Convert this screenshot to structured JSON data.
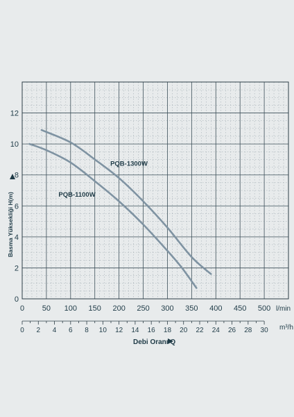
{
  "chart_data": {
    "type": "line",
    "ylabel": "Basma Yüksekliği H(m)",
    "xlabel": "Debi Oranı Q",
    "x_unit": "l/min",
    "x2_unit": "m³/h",
    "xlim": [
      0,
      550
    ],
    "ylim": [
      0,
      14
    ],
    "grid": true,
    "x_ticks": [
      0,
      50,
      100,
      150,
      200,
      250,
      300,
      350,
      400,
      450,
      500
    ],
    "x_tick_labels": [
      "0",
      "50",
      "100",
      "150",
      "200",
      "250",
      "300",
      "350",
      "400",
      "450",
      "500"
    ],
    "y_ticks": [
      0,
      2,
      4,
      6,
      8,
      10,
      12
    ],
    "y_tick_labels": [
      "0",
      "2",
      "4",
      "6",
      "8",
      "10",
      "12"
    ],
    "x2_ticks": [
      0,
      2,
      4,
      6,
      8,
      10,
      12,
      14,
      16,
      18,
      20,
      22,
      24,
      26,
      28,
      30
    ],
    "x2_tick_labels": [
      "0",
      "2",
      "4",
      "6",
      "8",
      "10",
      "12",
      "14",
      "16",
      "18",
      "20",
      "22",
      "24",
      "26",
      "28",
      "30"
    ],
    "series": [
      {
        "name": "PQB-1300W",
        "x": [
          40,
          100,
          150,
          200,
          250,
          300,
          350,
          390
        ],
        "y": [
          10.9,
          10.1,
          9.0,
          7.8,
          6.3,
          4.6,
          2.7,
          1.6
        ]
      },
      {
        "name": "PQB-1100W",
        "x": [
          15,
          50,
          100,
          150,
          200,
          250,
          300,
          330,
          360
        ],
        "y": [
          10.0,
          9.6,
          8.8,
          7.6,
          6.3,
          4.8,
          3.1,
          2.0,
          0.7
        ]
      }
    ],
    "annotations": [
      {
        "text": "PQB-1300W",
        "x": 182,
        "y": 8.6
      },
      {
        "text": "PQB-1100W",
        "x": 75,
        "y": 6.6
      }
    ],
    "colors": {
      "curve": "#7f93a2",
      "text": "#1f3b47",
      "grid": "#5a6d78"
    }
  }
}
